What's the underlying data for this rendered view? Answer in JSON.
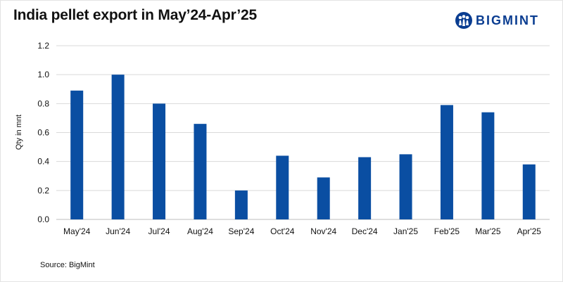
{
  "title": "India pellet export in May’24-Apr’25",
  "logo": {
    "text": "BIGMINT",
    "icon": "people-globe-icon",
    "color": "#0a3d91"
  },
  "source": "Source: BigMint",
  "chart_data": {
    "type": "bar",
    "title": "India pellet export in May’24-Apr’25",
    "xlabel": "",
    "ylabel": "Qty in mnt",
    "categories": [
      "May'24",
      "Jun'24",
      "Jul'24",
      "Aug'24",
      "Sep'24",
      "Oct'24",
      "Nov'24",
      "Dec'24",
      "Jan'25",
      "Feb'25",
      "Mar'25",
      "Apr'25"
    ],
    "values": [
      0.89,
      1.0,
      0.8,
      0.66,
      0.2,
      0.44,
      0.29,
      0.43,
      0.45,
      0.79,
      0.74,
      0.38
    ],
    "ylim": [
      0,
      1.2
    ],
    "yticks": [
      "0.0",
      "0.2",
      "0.4",
      "0.6",
      "0.8",
      "1.0",
      "1.2"
    ],
    "grid": true,
    "bar_color": "#0a4ea2"
  }
}
